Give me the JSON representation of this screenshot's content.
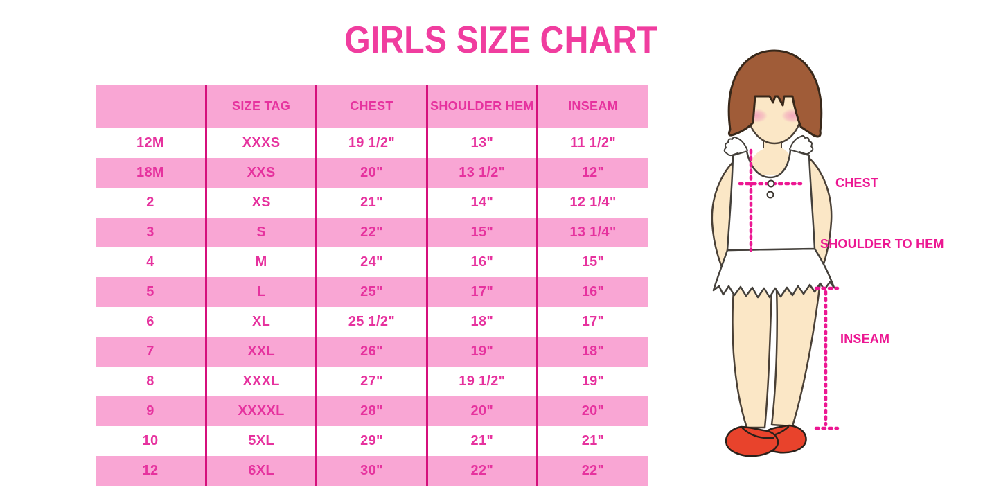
{
  "title": "GIRLS SIZE CHART",
  "chart_data": {
    "type": "table",
    "title": "GIRLS SIZE CHART",
    "columns": [
      "",
      "SIZE TAG",
      "CHEST",
      "SHOULDER HEM",
      "INSEAM"
    ],
    "rows": [
      [
        "12M",
        "XXXS",
        "19 1/2\"",
        "13\"",
        "11 1/2\""
      ],
      [
        "18M",
        "XXS",
        "20\"",
        "13 1/2\"",
        "12\""
      ],
      [
        "2",
        "XS",
        "21\"",
        "14\"",
        "12 1/4\""
      ],
      [
        "3",
        "S",
        "22\"",
        "15\"",
        "13 1/4\""
      ],
      [
        "4",
        "M",
        "24\"",
        "16\"",
        "15\""
      ],
      [
        "5",
        "L",
        "25\"",
        "17\"",
        "16\""
      ],
      [
        "6",
        "XL",
        "25 1/2\"",
        "18\"",
        "17\""
      ],
      [
        "7",
        "XXL",
        "26\"",
        "19\"",
        "18\""
      ],
      [
        "8",
        "XXXL",
        "27\"",
        "19 1/2\"",
        "19\""
      ],
      [
        "9",
        "XXXXL",
        "28\"",
        "20\"",
        "20\""
      ],
      [
        "10",
        "5XL",
        "29\"",
        "21\"",
        "21\""
      ],
      [
        "12",
        "6XL",
        "30\"",
        "22\"",
        "22\""
      ]
    ],
    "legend_position": "none",
    "grid": "vertical-dividers-only"
  },
  "figure": {
    "labels": {
      "chest": "CHEST",
      "shoulder_to_hem": "SHOULDER TO HEM",
      "inseam": "INSEAM"
    }
  },
  "colors": {
    "title_pink": "#F03D9F",
    "row_pink": "#F9A6D4",
    "table_text_pink": "#E6329E",
    "divider_magenta": "#D5107C",
    "label_magenta": "#EC1792",
    "dotted_line_magenta": "#EC1792",
    "hair_brown": "#A05C38",
    "skin": "#FBE7C6",
    "shoe_red": "#E8432C",
    "background": "#FFFFFF"
  }
}
